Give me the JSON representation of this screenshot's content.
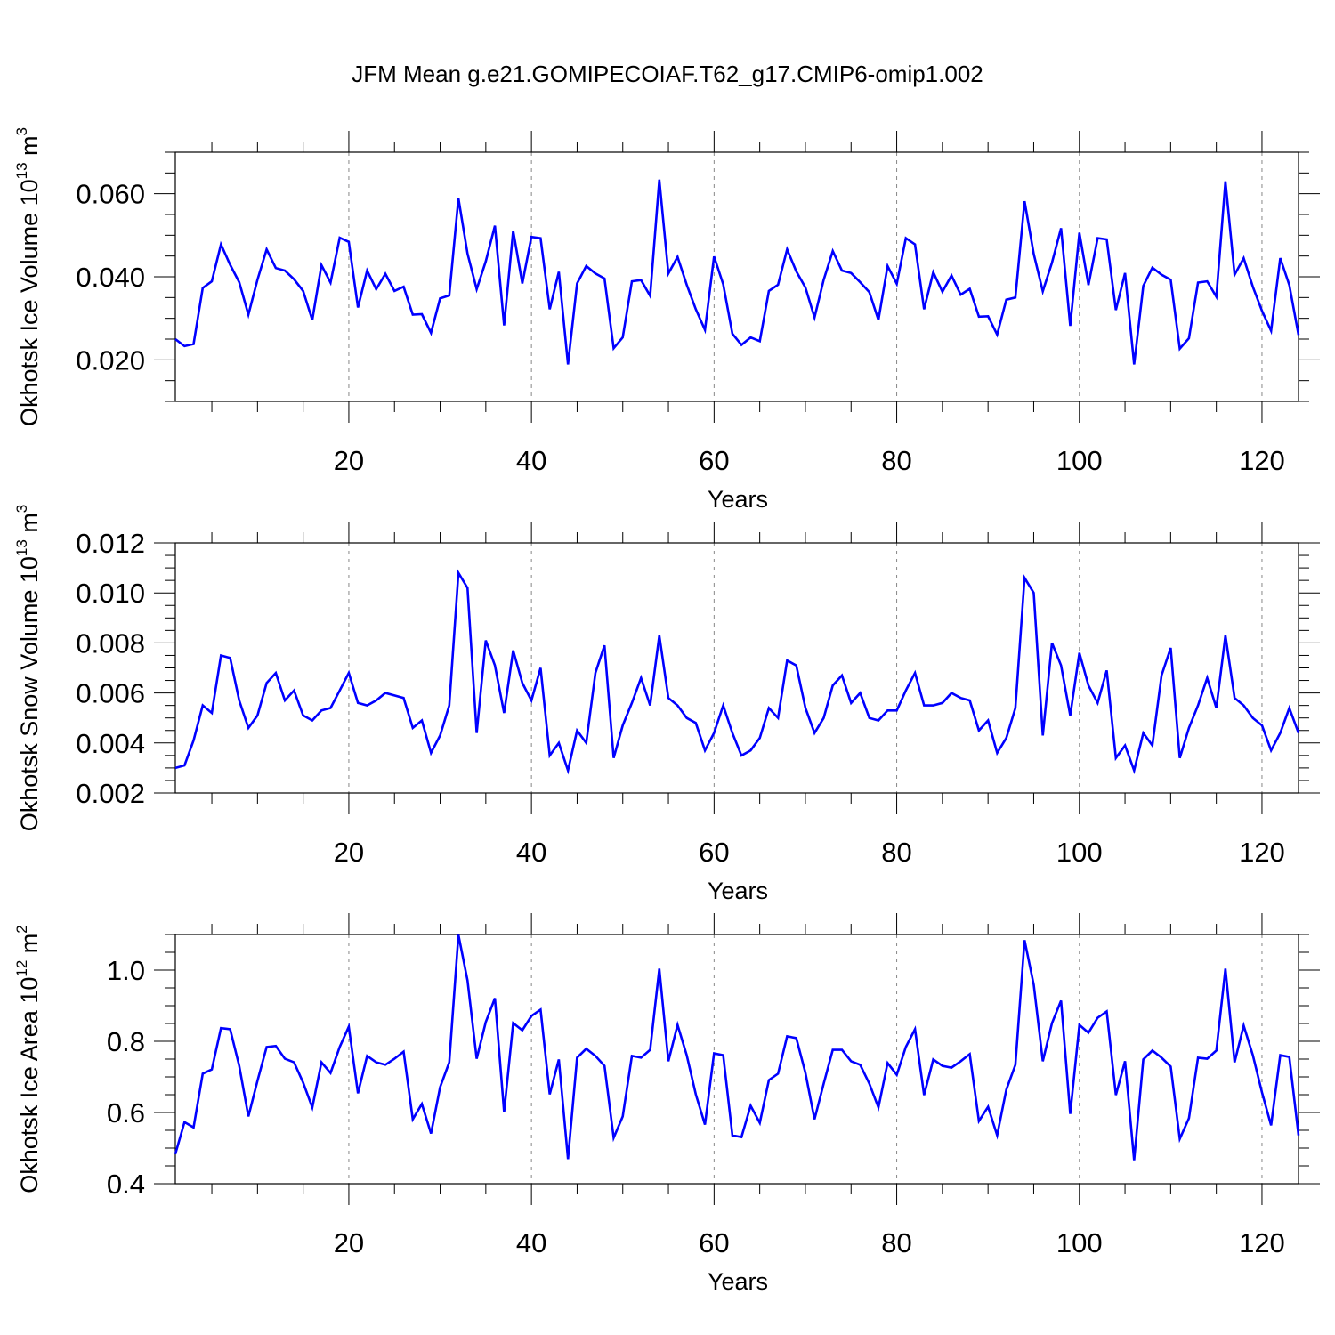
{
  "title": "JFM Mean g.e21.GOMIPECOIAF.T62_g17.CMIP6-omip1.002",
  "colors": {
    "line": "#0000ff",
    "axis": "#000000",
    "grid": "#888888"
  },
  "chart_data": [
    {
      "type": "line",
      "xlabel": "Years",
      "ylabel": {
        "text": "Okhotsk Ice Volume 10",
        "sup": "13",
        "mid": " m",
        "sup2": "3"
      },
      "xlim": [
        1,
        124
      ],
      "ylim": [
        0.01,
        0.07
      ],
      "xticks": [
        20,
        40,
        60,
        80,
        100,
        120
      ],
      "yticks": [
        0.02,
        0.04,
        0.06
      ],
      "ytick_labels": [
        "0.020",
        "0.040",
        "0.060"
      ],
      "grid": "vertical dashed at major x ticks",
      "series": [
        {
          "x_start": 1,
          "values": [
            0.025,
            0.0233,
            0.0238,
            0.0373,
            0.0389,
            0.0478,
            0.0429,
            0.0387,
            0.0309,
            0.0393,
            0.0466,
            0.0421,
            0.0415,
            0.0394,
            0.0366,
            0.0296,
            0.0428,
            0.0386,
            0.0494,
            0.0484,
            0.0326,
            0.0415,
            0.037,
            0.0407,
            0.0366,
            0.0376,
            0.0309,
            0.031,
            0.0265,
            0.0348,
            0.0355,
            0.0589,
            0.0456,
            0.037,
            0.0437,
            0.0523,
            0.0283,
            0.0511,
            0.0384,
            0.0496,
            0.0493,
            0.0322,
            0.0412,
            0.0189,
            0.0384,
            0.0426,
            0.0408,
            0.0396,
            0.0228,
            0.0254,
            0.0389,
            0.0392,
            0.0354,
            0.0634,
            0.0408,
            0.0448,
            0.0381,
            0.0322,
            0.0272,
            0.0449,
            0.0382,
            0.0263,
            0.0236,
            0.0254,
            0.0245,
            0.0366,
            0.0381,
            0.0466,
            0.0413,
            0.0374,
            0.0302,
            0.0393,
            0.0462,
            0.0415,
            0.0409,
            0.0387,
            0.0363,
            0.0296,
            0.0426,
            0.0383,
            0.0493,
            0.0478,
            0.0322,
            0.0411,
            0.0364,
            0.0403,
            0.0357,
            0.0371,
            0.0304,
            0.0305,
            0.0261,
            0.0345,
            0.035,
            0.0582,
            0.0455,
            0.0365,
            0.0434,
            0.0517,
            0.0282,
            0.0506,
            0.038,
            0.0493,
            0.049,
            0.032,
            0.0409,
            0.0189,
            0.0378,
            0.0422,
            0.0405,
            0.0393,
            0.0227,
            0.0252,
            0.0386,
            0.0389,
            0.0352,
            0.063,
            0.0405,
            0.0445,
            0.0376,
            0.0318,
            0.027,
            0.0445,
            0.038,
            0.026
          ]
        }
      ]
    },
    {
      "type": "line",
      "xlabel": "Years",
      "ylabel": {
        "text": "Okhotsk Snow Volume 10",
        "sup": "13",
        "mid": " m",
        "sup2": "3"
      },
      "xlim": [
        1,
        124
      ],
      "ylim": [
        0.002,
        0.012
      ],
      "xticks": [
        20,
        40,
        60,
        80,
        100,
        120
      ],
      "yticks": [
        0.002,
        0.004,
        0.006,
        0.008,
        0.01,
        0.012
      ],
      "ytick_labels": [
        "0.002",
        "0.004",
        "0.006",
        "0.008",
        "0.010",
        "0.012"
      ],
      "grid": "vertical dashed at major x ticks",
      "series": [
        {
          "x_start": 1,
          "values": [
            0.003,
            0.0031,
            0.0041,
            0.0055,
            0.0052,
            0.0075,
            0.0074,
            0.0057,
            0.0046,
            0.0051,
            0.0064,
            0.0068,
            0.0057,
            0.0061,
            0.0051,
            0.0049,
            0.0053,
            0.0054,
            0.0061,
            0.0068,
            0.0056,
            0.0055,
            0.0057,
            0.006,
            0.0059,
            0.0058,
            0.0046,
            0.0049,
            0.0036,
            0.0043,
            0.0055,
            0.0108,
            0.0102,
            0.0044,
            0.0081,
            0.0071,
            0.0052,
            0.0077,
            0.0064,
            0.0057,
            0.007,
            0.0035,
            0.004,
            0.0029,
            0.0045,
            0.004,
            0.0068,
            0.0079,
            0.0034,
            0.0047,
            0.0056,
            0.0066,
            0.0055,
            0.0083,
            0.0058,
            0.0055,
            0.005,
            0.0048,
            0.0037,
            0.0044,
            0.0055,
            0.0044,
            0.0035,
            0.0037,
            0.0042,
            0.0054,
            0.005,
            0.0073,
            0.0071,
            0.0054,
            0.0044,
            0.005,
            0.0063,
            0.0067,
            0.0056,
            0.006,
            0.005,
            0.0049,
            0.0053,
            0.0053,
            0.0061,
            0.0068,
            0.0055,
            0.0055,
            0.0056,
            0.006,
            0.0058,
            0.0057,
            0.0045,
            0.0049,
            0.0036,
            0.0042,
            0.0054,
            0.0106,
            0.01,
            0.0043,
            0.008,
            0.0071,
            0.0051,
            0.0076,
            0.0063,
            0.0056,
            0.0069,
            0.0034,
            0.0039,
            0.0029,
            0.0044,
            0.0039,
            0.0067,
            0.0078,
            0.0034,
            0.0046,
            0.0055,
            0.0066,
            0.0054,
            0.0083,
            0.0058,
            0.0055,
            0.005,
            0.0047,
            0.0037,
            0.0044,
            0.0054,
            0.0044
          ]
        }
      ]
    },
    {
      "type": "line",
      "xlabel": "Years",
      "ylabel": {
        "text": "Okhotsk Ice Area 10",
        "sup": "12",
        "mid": " m",
        "sup2": "2"
      },
      "xlim": [
        1,
        124
      ],
      "ylim": [
        0.4,
        1.1
      ],
      "xticks": [
        20,
        40,
        60,
        80,
        100,
        120
      ],
      "yticks": [
        0.4,
        0.6,
        0.8,
        1.0
      ],
      "ytick_labels": [
        "0.4",
        "0.6",
        "0.8",
        "1.0"
      ],
      "grid": "vertical dashed at major x ticks",
      "series": [
        {
          "x_start": 1,
          "values": [
            0.483,
            0.573,
            0.558,
            0.709,
            0.721,
            0.837,
            0.834,
            0.731,
            0.589,
            0.689,
            0.784,
            0.787,
            0.751,
            0.741,
            0.684,
            0.614,
            0.741,
            0.711,
            0.784,
            0.841,
            0.654,
            0.759,
            0.741,
            0.734,
            0.751,
            0.771,
            0.581,
            0.624,
            0.541,
            0.671,
            0.741,
            1.099,
            0.971,
            0.751,
            0.854,
            0.921,
            0.601,
            0.851,
            0.831,
            0.871,
            0.889,
            0.651,
            0.749,
            0.469,
            0.754,
            0.779,
            0.759,
            0.731,
            0.529,
            0.589,
            0.759,
            0.754,
            0.776,
            1.004,
            0.744,
            0.846,
            0.761,
            0.651,
            0.566,
            0.766,
            0.761,
            0.536,
            0.531,
            0.619,
            0.571,
            0.691,
            0.709,
            0.814,
            0.809,
            0.711,
            0.581,
            0.681,
            0.776,
            0.776,
            0.744,
            0.734,
            0.681,
            0.614,
            0.739,
            0.706,
            0.784,
            0.834,
            0.649,
            0.749,
            0.731,
            0.726,
            0.744,
            0.764,
            0.576,
            0.616,
            0.536,
            0.664,
            0.734,
            1.084,
            0.959,
            0.744,
            0.851,
            0.914,
            0.596,
            0.846,
            0.824,
            0.866,
            0.884,
            0.649,
            0.744,
            0.466,
            0.749,
            0.774,
            0.754,
            0.729,
            0.526,
            0.584,
            0.754,
            0.751,
            0.774,
            1.004,
            0.741,
            0.844,
            0.761,
            0.656,
            0.564,
            0.761,
            0.756,
            0.536
          ]
        }
      ]
    }
  ]
}
